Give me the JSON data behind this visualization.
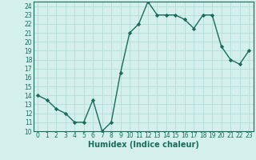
{
  "x": [
    0,
    1,
    2,
    3,
    4,
    5,
    6,
    7,
    8,
    9,
    10,
    11,
    12,
    13,
    14,
    15,
    16,
    17,
    18,
    19,
    20,
    21,
    22,
    23
  ],
  "y": [
    14,
    13.5,
    12.5,
    12,
    11,
    11,
    13.5,
    10,
    11,
    16.5,
    21,
    22,
    24.5,
    23,
    23,
    23,
    22.5,
    21.5,
    23,
    23,
    19.5,
    18,
    17.5,
    19
  ],
  "line_color": "#1a6b5a",
  "marker": "D",
  "marker_size": 2.2,
  "bg_color": "#d4f0ec",
  "grid_color": "#b0d8d4",
  "xlabel": "Humidex (Indice chaleur)",
  "xlim": [
    -0.5,
    23.5
  ],
  "ylim": [
    10,
    24.5
  ],
  "yticks": [
    10,
    11,
    12,
    13,
    14,
    15,
    16,
    17,
    18,
    19,
    20,
    21,
    22,
    23,
    24
  ],
  "xticks": [
    0,
    1,
    2,
    3,
    4,
    5,
    6,
    7,
    8,
    9,
    10,
    11,
    12,
    13,
    14,
    15,
    16,
    17,
    18,
    19,
    20,
    21,
    22,
    23
  ],
  "tick_color": "#1a6b5a",
  "label_fontsize": 5.5,
  "xlabel_fontsize": 7,
  "line_width": 1.0
}
